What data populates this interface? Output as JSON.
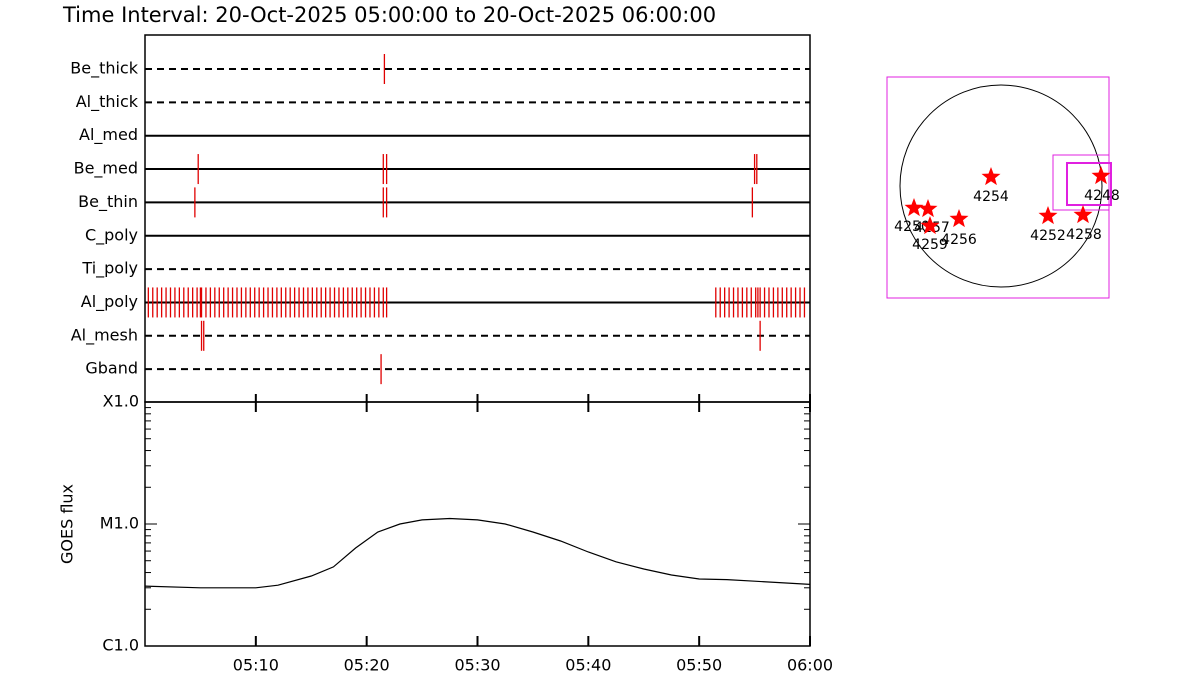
{
  "chart_data": [
    {
      "type": "timeline",
      "title": "Time Interval: 20-Oct-2025 05:00:00 to 20-Oct-2025 06:00:00",
      "color": "#e00000",
      "xlim": [
        0,
        60
      ],
      "xticks": [
        10,
        20,
        30,
        40,
        50,
        60
      ],
      "rows": [
        {
          "name": "Be_thick",
          "style": "dashed",
          "times": [
            21.6
          ]
        },
        {
          "name": "Al_thick",
          "style": "dashed",
          "times": []
        },
        {
          "name": "Al_med",
          "style": "solid",
          "times": []
        },
        {
          "name": "Be_med",
          "style": "solid",
          "times": [
            4.8,
            21.5,
            21.8,
            55.0,
            55.2
          ]
        },
        {
          "name": "Be_thin",
          "style": "solid",
          "times": [
            4.5,
            21.5,
            21.8,
            54.8
          ]
        },
        {
          "name": "C_poly",
          "style": "solid",
          "times": []
        },
        {
          "name": "Ti_poly",
          "style": "dashed",
          "times": []
        },
        {
          "name": "Al_poly",
          "style": "solid",
          "times": [
            0.3,
            0.7,
            1.1,
            1.5,
            1.9,
            2.3,
            2.7,
            3.1,
            3.5,
            3.9,
            4.3,
            4.7,
            5.0,
            5.1,
            5.5,
            5.9,
            6.3,
            6.7,
            7.1,
            7.5,
            7.9,
            8.3,
            8.7,
            9.1,
            9.5,
            9.9,
            10.3,
            10.7,
            11.1,
            11.5,
            11.9,
            12.3,
            12.7,
            13.1,
            13.5,
            13.9,
            14.3,
            14.7,
            15.1,
            15.5,
            15.9,
            16.3,
            16.7,
            17.1,
            17.5,
            17.9,
            18.3,
            18.7,
            19.1,
            19.5,
            19.9,
            20.3,
            20.7,
            21.1,
            21.5,
            21.8,
            51.5,
            51.9,
            52.3,
            52.7,
            53.1,
            53.5,
            53.9,
            54.3,
            54.7,
            55.1,
            55.3,
            55.5,
            55.9,
            56.3,
            56.7,
            57.1,
            57.5,
            57.9,
            58.3,
            58.7,
            59.1,
            59.5
          ]
        },
        {
          "name": "Al_mesh",
          "style": "dashed",
          "times": [
            5.1,
            5.3,
            55.5
          ]
        },
        {
          "name": "Gband",
          "style": "dashed",
          "times": [
            21.3
          ]
        }
      ]
    },
    {
      "type": "line",
      "ylabel": "GOES flux",
      "log": true,
      "color": "#000000",
      "xlim": [
        0,
        60
      ],
      "xticks": [
        {
          "value": 10,
          "label": "05:10"
        },
        {
          "value": 20,
          "label": "05:20"
        },
        {
          "value": 30,
          "label": "05:30"
        },
        {
          "value": 40,
          "label": "05:40"
        },
        {
          "value": 50,
          "label": "05:50"
        },
        {
          "value": 60,
          "label": "06:00"
        }
      ],
      "ylim": [
        1e-06,
        0.0001
      ],
      "yticks": [
        {
          "value": 1e-06,
          "label": "C1.0"
        },
        {
          "value": 1e-05,
          "label": "M1.0"
        },
        {
          "value": 0.0001,
          "label": "X1.0"
        }
      ],
      "x": [
        0,
        5,
        10,
        12,
        15,
        17,
        19,
        21,
        23,
        25,
        27.5,
        30,
        32.5,
        35,
        37.5,
        40,
        42.5,
        45,
        47.5,
        50,
        52.5,
        55,
        60
      ],
      "y": [
        3.1e-06,
        3e-06,
        3e-06,
        3.15e-06,
        3.75e-06,
        4.45e-06,
        6.36e-06,
        8.6e-06,
        1e-05,
        1.08e-05,
        1.11e-05,
        1.08e-05,
        1e-05,
        8.6e-06,
        7.26e-06,
        5.9e-06,
        4.9e-06,
        4.28e-06,
        3.82e-06,
        3.54e-06,
        3.5e-06,
        3.4e-06,
        3.2e-06
      ]
    }
  ],
  "map": {
    "regions": [
      "4254",
      "4248",
      "4252",
      "4258",
      "4256",
      "4250",
      "4257",
      "4259"
    ]
  }
}
